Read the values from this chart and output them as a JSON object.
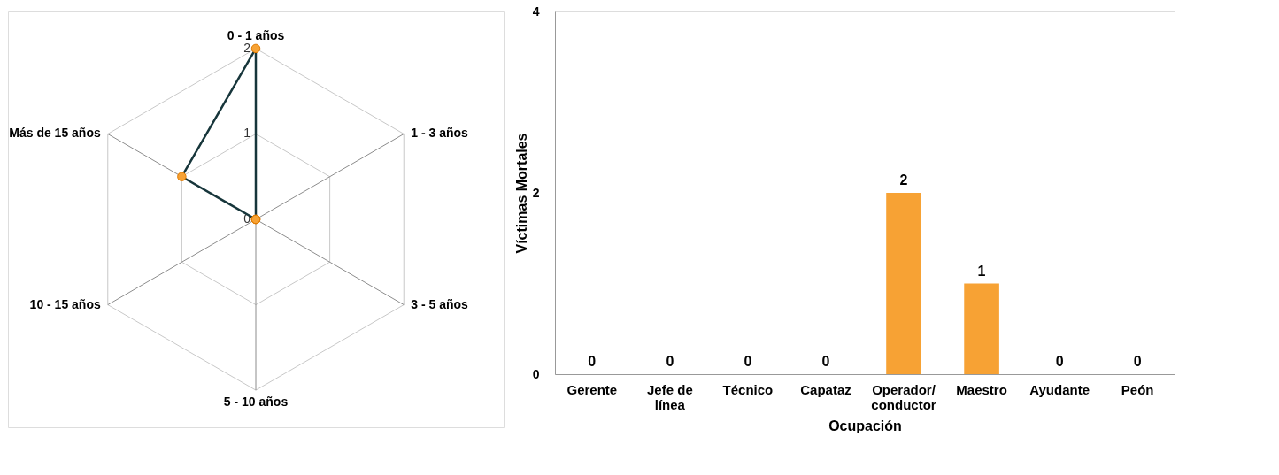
{
  "chart_data": [
    {
      "type": "radar",
      "categories": [
        "0 - 1 años",
        "1 - 3 años",
        "3 - 5 años",
        "5 - 10 años",
        "10 - 15 años",
        "Más de 15  años"
      ],
      "series": [
        {
          "color": "#17363b",
          "colors": [
            "#f7a234",
            "#f7a234",
            "#f7a234",
            "#f7a234",
            "#f7a234",
            "#f7a234"
          ],
          "values": [
            2,
            0,
            0,
            0,
            0,
            1
          ]
        }
      ],
      "ylim": [
        0,
        2
      ],
      "yticks": [
        0,
        1,
        2
      ],
      "marker": "circle",
      "line_style": "solid"
    },
    {
      "type": "bar",
      "categories": [
        "Gerente",
        "Jefe de línea",
        "Técnico",
        "Capataz",
        "Operador/ conductor",
        "Maestro",
        "Ayudante",
        "Peón"
      ],
      "values": [
        0,
        0,
        0,
        0,
        2,
        1,
        0,
        0
      ],
      "color": "#f7a234",
      "xlabel": "Ocupación",
      "ylabel": "Víctimas Mortales",
      "ylim": [
        0,
        4
      ],
      "yticks": [
        0,
        2,
        4
      ],
      "data_labels": true,
      "grid": false
    }
  ]
}
